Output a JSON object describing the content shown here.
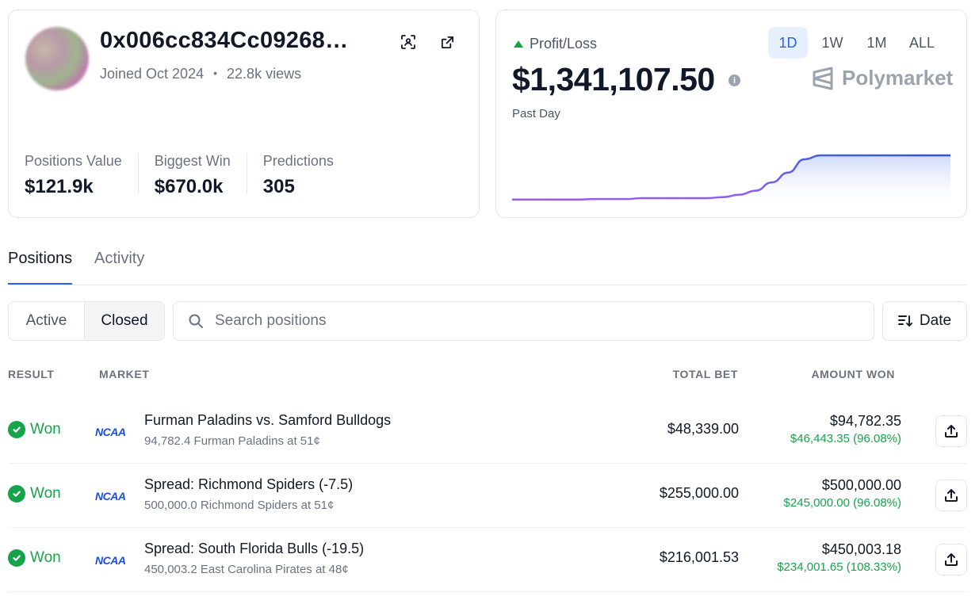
{
  "profile": {
    "username": "0x006cc834Cc09268…",
    "joined": "Joined Oct 2024",
    "views": "22.8k views",
    "stats": [
      {
        "label": "Positions Value",
        "value": "$121.9k"
      },
      {
        "label": "Biggest Win",
        "value": "$670.0k"
      },
      {
        "label": "Predictions",
        "value": "305"
      }
    ]
  },
  "pnl": {
    "label": "Profit/Loss",
    "value": "$1,341,107.50",
    "period": "Past Day",
    "ranges": [
      "1D",
      "1W",
      "1M",
      "ALL"
    ],
    "active_range": "1D",
    "brand": "Polymarket",
    "colors": {
      "up": "#16a34a",
      "accent": "#2563eb"
    }
  },
  "chart_data": {
    "type": "area",
    "title": "",
    "xlabel": "",
    "ylabel": "",
    "ylim": [
      0,
      1
    ],
    "grid": false,
    "series": [
      {
        "values": [
          0.1,
          0.1,
          0.1,
          0.1,
          0.1,
          0.11,
          0.11,
          0.11,
          0.13,
          0.13,
          0.13,
          0.13,
          0.13,
          0.15,
          0.2,
          0.28,
          0.45,
          0.65,
          0.92,
          1.0,
          1.0,
          1.0,
          1.0,
          1.0,
          1.0,
          1.0,
          1.0,
          1.0
        ]
      }
    ]
  },
  "tabs": {
    "positions": "Positions",
    "activity": "Activity"
  },
  "filters": {
    "active": "Active",
    "closed": "Closed",
    "search_placeholder": "Search positions",
    "sort_label": "Date"
  },
  "table": {
    "headers": {
      "result": "RESULT",
      "market": "MARKET",
      "total_bet": "TOTAL BET",
      "amount_won": "AMOUNT WON"
    },
    "rows": [
      {
        "result": "Won",
        "logo": "NCAA",
        "title": "Furman Paladins vs. Samford Bulldogs",
        "subtitle": "94,782.4 Furman Paladins at 51¢",
        "total_bet": "$48,339.00",
        "amount_won": "$94,782.35",
        "pnl": "$46,443.35 (96.08%)"
      },
      {
        "result": "Won",
        "logo": "NCAA",
        "title": "Spread: Richmond Spiders (-7.5)",
        "subtitle": "500,000.0 Richmond Spiders at 51¢",
        "total_bet": "$255,000.00",
        "amount_won": "$500,000.00",
        "pnl": "$245,000.00 (96.08%)"
      },
      {
        "result": "Won",
        "logo": "NCAA",
        "title": "Spread: South Florida Bulls (-19.5)",
        "subtitle": "450,003.2 East Carolina Pirates at 48¢",
        "total_bet": "$216,001.53",
        "amount_won": "$450,003.18",
        "pnl": "$234,001.65 (108.33%)"
      }
    ]
  }
}
